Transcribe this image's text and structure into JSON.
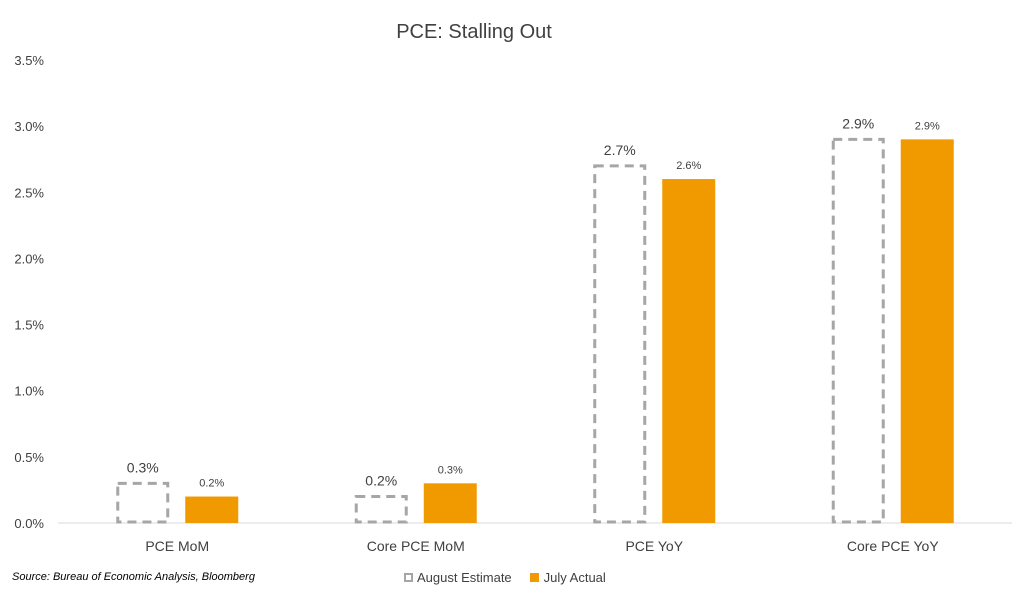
{
  "chart_data": {
    "type": "bar",
    "title": "PCE: Stalling Out",
    "categories": [
      "PCE MoM",
      "Core PCE MoM",
      "PCE YoY",
      "Core PCE YoY"
    ],
    "series": [
      {
        "name": "August Estimate",
        "values": [
          0.3,
          0.2,
          2.7,
          2.9
        ],
        "labels": [
          "0.3%",
          "0.2%",
          "2.7%",
          "2.9%"
        ],
        "style": "dashed-outline",
        "color": "#a6a6a6"
      },
      {
        "name": "July Actual",
        "values": [
          0.2,
          0.3,
          2.6,
          2.9
        ],
        "labels": [
          "0.2%",
          "0.3%",
          "2.6%",
          "2.9%"
        ],
        "style": "filled",
        "color": "#f09a00"
      }
    ],
    "ylim": [
      0,
      3.5
    ],
    "yticks": [
      "0.0%",
      "0.5%",
      "1.0%",
      "1.5%",
      "2.0%",
      "2.5%",
      "3.0%",
      "3.5%"
    ],
    "grid": false,
    "legend_position": "bottom"
  },
  "source": "Source: Bureau of Economic Analysis, Bloomberg"
}
